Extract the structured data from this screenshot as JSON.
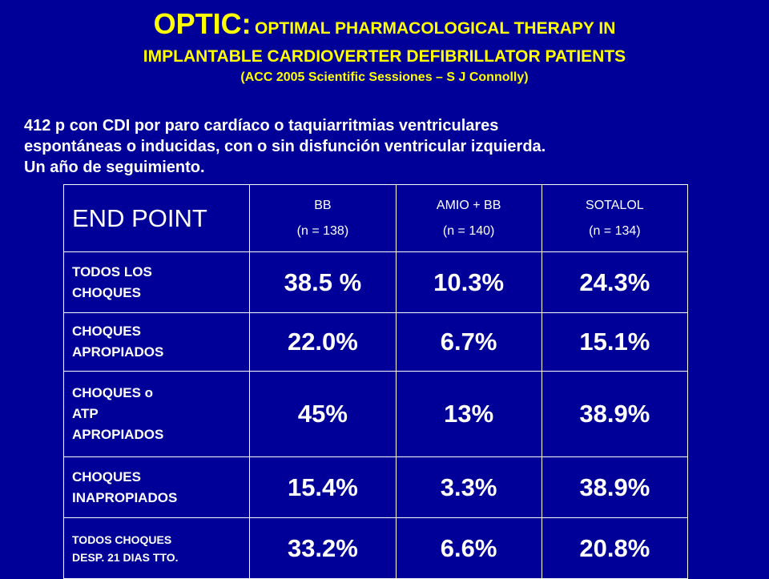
{
  "title": {
    "main": "OPTIC:",
    "rest_line1": "OPTIMAL PHARMACOLOGICAL THERAPY IN",
    "line2": "IMPLANTABLE CARDIOVERTER DEFIBRILLATOR PATIENTS",
    "line3": "(ACC 2005 Scientific Sessiones – S J Connolly)"
  },
  "intro": {
    "line1": "412 p con CDI por  paro cardíaco o taquiarritmias ventriculares",
    "line2": "espontáneas o inducidas, con o sin disfunción ventricular izquierda.",
    "line3": "Un año de seguimiento."
  },
  "table": {
    "header": {
      "endpoint": "END POINT",
      "groups": [
        {
          "name": "BB",
          "n": "(n = 138)"
        },
        {
          "name": "AMIO + BB",
          "n": "(n = 140)"
        },
        {
          "name": "SOTALOL",
          "n": "(n = 134)"
        }
      ]
    },
    "rows": [
      {
        "label_lines": [
          "TODOS LOS",
          "CHOQUES"
        ],
        "values": [
          "38.5 %",
          "10.3%",
          "24.3%"
        ]
      },
      {
        "label_lines": [
          "CHOQUES",
          "APROPIADOS"
        ],
        "values": [
          "22.0%",
          "6.7%",
          "15.1%"
        ]
      },
      {
        "label_lines": [
          "CHOQUES o",
          "ATP",
          "APROPIADOS"
        ],
        "values": [
          "45%",
          "13%",
          "38.9%"
        ]
      },
      {
        "label_lines": [
          "CHOQUES",
          "INAPROPIADOS"
        ],
        "values": [
          "15.4%",
          "3.3%",
          "38.9%"
        ]
      },
      {
        "label_lines": [
          "TODOS CHOQUES",
          "DESP. 21 DIAS TTO."
        ],
        "values": [
          "33.2%",
          "6.6%",
          "20.8%"
        ]
      }
    ]
  },
  "colors": {
    "background": "#000099",
    "title": "#ffff00",
    "text": "#ffffff"
  }
}
